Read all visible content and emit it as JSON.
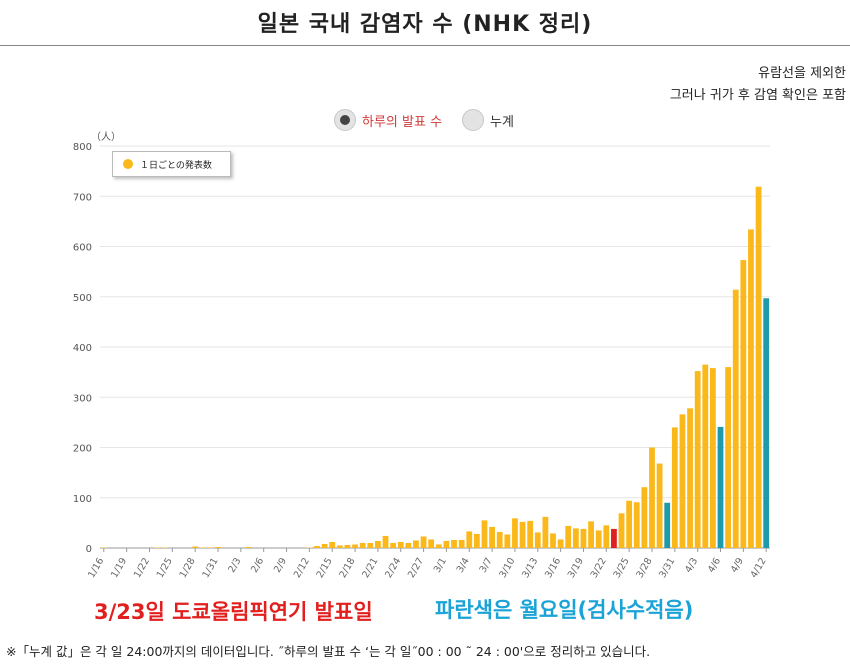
{
  "title": "일본 국내 감염자 수 (NHK 정리)",
  "notes": [
    "유람선을 제외한",
    "그러나 귀가 후 감염 확인은 포함"
  ],
  "toggle": {
    "options": [
      {
        "label": "하루의 발표 수",
        "selected": true
      },
      {
        "label": "누계",
        "selected": false
      }
    ]
  },
  "colors": {
    "daily": "#fbb81a",
    "monday": "#1f9aaa",
    "highlight": "#e02020"
  },
  "chart_data": {
    "type": "bar",
    "y_unit_label": "（人）",
    "ylim": [
      0,
      800
    ],
    "yticks": [
      0,
      100,
      200,
      300,
      400,
      500,
      600,
      700,
      800
    ],
    "grid": true,
    "legend": {
      "label": "１日ごとの発表数",
      "position": "top-left"
    },
    "x_tick_labels": [
      "1/16",
      "1/19",
      "1/22",
      "1/25",
      "1/28",
      "1/31",
      "2/3",
      "2/6",
      "2/9",
      "2/12",
      "2/15",
      "2/18",
      "2/21",
      "2/24",
      "2/27",
      "3/1",
      "3/4",
      "3/7",
      "3/10",
      "3/13",
      "3/16",
      "3/19",
      "3/22",
      "3/25",
      "3/28",
      "3/31",
      "4/3",
      "4/6",
      "4/9",
      "4/12"
    ],
    "x_tick_every": 3,
    "categories": [
      "1/16",
      "1/17",
      "1/18",
      "1/19",
      "1/20",
      "1/21",
      "1/22",
      "1/23",
      "1/24",
      "1/25",
      "1/26",
      "1/27",
      "1/28",
      "1/29",
      "1/30",
      "1/31",
      "2/1",
      "2/2",
      "2/3",
      "2/4",
      "2/5",
      "2/6",
      "2/7",
      "2/8",
      "2/9",
      "2/10",
      "2/11",
      "2/12",
      "2/13",
      "2/14",
      "2/15",
      "2/16",
      "2/17",
      "2/18",
      "2/19",
      "2/20",
      "2/21",
      "2/22",
      "2/23",
      "2/24",
      "2/25",
      "2/26",
      "2/27",
      "2/28",
      "2/29",
      "3/1",
      "3/2",
      "3/3",
      "3/4",
      "3/5",
      "3/6",
      "3/7",
      "3/8",
      "3/9",
      "3/10",
      "3/11",
      "3/12",
      "3/13",
      "3/14",
      "3/15",
      "3/16",
      "3/17",
      "3/18",
      "3/19",
      "3/20",
      "3/21",
      "3/22",
      "3/23",
      "3/24",
      "3/25",
      "3/26",
      "3/27",
      "3/28",
      "3/29",
      "3/30",
      "3/31",
      "4/1",
      "4/2",
      "4/3",
      "4/4",
      "4/5",
      "4/6",
      "4/7",
      "4/8",
      "4/9",
      "4/10",
      "4/11",
      "4/12"
    ],
    "values": [
      1,
      0,
      0,
      0,
      0,
      0,
      0,
      1,
      1,
      0,
      0,
      0,
      3,
      1,
      1,
      2,
      0,
      0,
      0,
      2,
      0,
      0,
      0,
      0,
      0,
      0,
      0,
      1,
      4,
      8,
      12,
      5,
      6,
      7,
      10,
      10,
      14,
      24,
      10,
      12,
      10,
      15,
      23,
      17,
      7,
      14,
      16,
      16,
      33,
      28,
      55,
      42,
      32,
      27,
      59,
      52,
      54,
      31,
      62,
      29,
      17,
      44,
      39,
      38,
      53,
      35,
      45,
      38,
      69,
      94,
      91,
      121,
      200,
      168,
      90,
      240,
      266,
      278,
      352,
      365,
      358,
      241,
      360,
      514,
      573,
      634,
      719,
      497
    ],
    "bar_colors": [
      "d",
      "d",
      "d",
      "d",
      "d",
      "d",
      "d",
      "d",
      "d",
      "d",
      "d",
      "d",
      "d",
      "d",
      "d",
      "d",
      "d",
      "d",
      "d",
      "d",
      "d",
      "d",
      "d",
      "d",
      "d",
      "d",
      "d",
      "d",
      "d",
      "d",
      "d",
      "d",
      "d",
      "d",
      "d",
      "d",
      "d",
      "d",
      "d",
      "d",
      "d",
      "d",
      "d",
      "d",
      "d",
      "d",
      "d",
      "d",
      "d",
      "d",
      "d",
      "d",
      "d",
      "d",
      "d",
      "d",
      "d",
      "d",
      "d",
      "d",
      "d",
      "d",
      "d",
      "d",
      "d",
      "d",
      "d",
      "h",
      "d",
      "d",
      "d",
      "d",
      "d",
      "d",
      "m",
      "d",
      "d",
      "d",
      "d",
      "d",
      "d",
      "m",
      "d",
      "d",
      "d",
      "d",
      "d",
      "m"
    ]
  },
  "footer": {
    "olympics_note": "3/23일 도쿄올림픽연기 발표일",
    "monday_note": "파란색은 월요일(검사수적음)",
    "footnote": "※「누계 값」은 각 일 24:00까지의 데이터입니다. ˝하루의 발표 수 ‘는 각 일˝00 : 00 ˜ 24 : 00'으로 정리하고 있습니다."
  }
}
